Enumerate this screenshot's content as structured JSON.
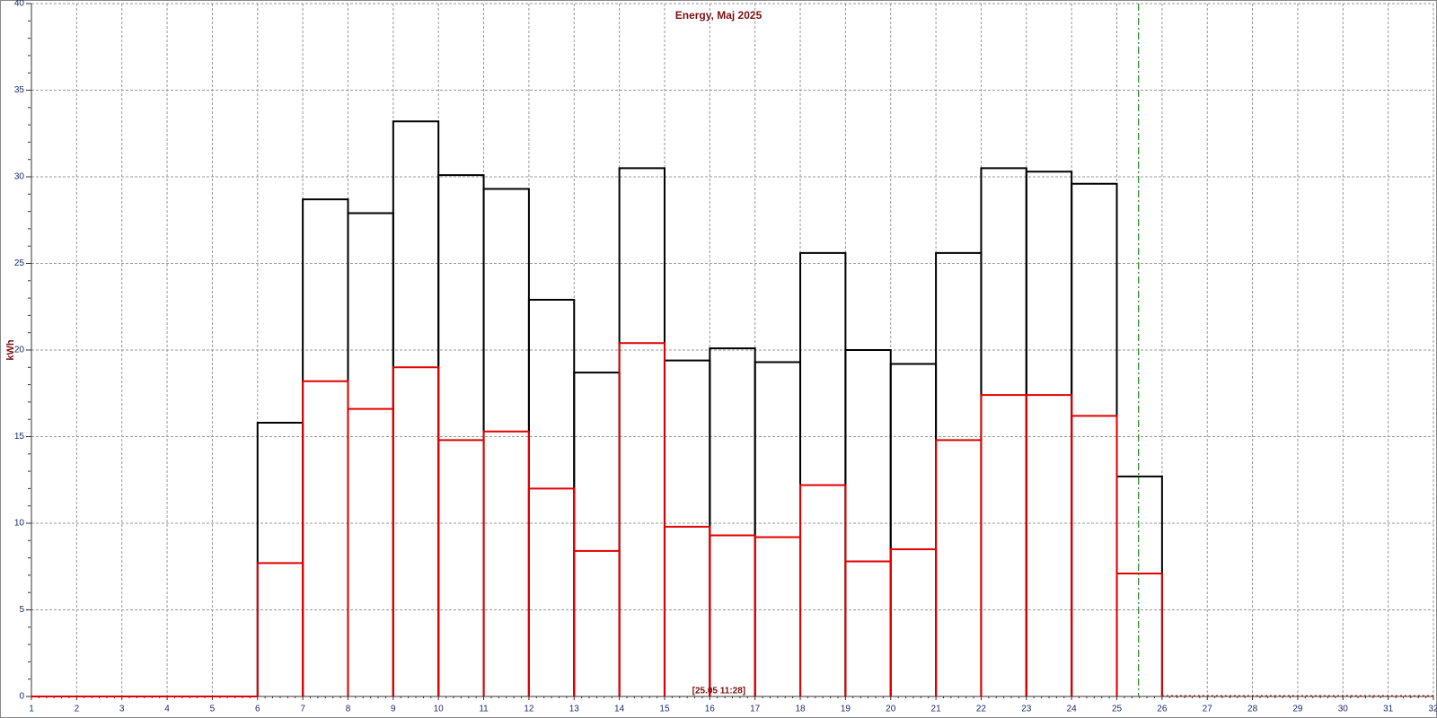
{
  "chart_data": {
    "type": "step-bar",
    "title": "Energy, Maj 2025",
    "y_label": "kWh",
    "x": [
      1,
      2,
      3,
      4,
      5,
      6,
      7,
      8,
      9,
      10,
      11,
      12,
      13,
      14,
      15,
      16,
      17,
      18,
      19,
      20,
      21,
      22,
      23,
      24,
      25,
      26,
      27,
      28,
      29,
      30,
      31
    ],
    "series": [
      {
        "color": "#000000",
        "values": [
          0,
          0,
          0,
          0,
          0,
          15.8,
          28.7,
          27.9,
          33.2,
          30.1,
          29.3,
          22.9,
          18.7,
          30.5,
          19.4,
          20.1,
          19.3,
          25.6,
          20.0,
          19.2,
          25.6,
          30.5,
          30.3,
          29.6,
          12.7,
          null,
          null,
          null,
          null,
          null,
          null
        ]
      },
      {
        "color": "#e00000",
        "values": [
          0,
          0,
          0,
          0,
          0,
          7.7,
          18.2,
          16.6,
          19.0,
          14.8,
          15.3,
          12.0,
          8.4,
          20.4,
          9.8,
          9.3,
          9.2,
          12.2,
          7.8,
          8.5,
          14.8,
          17.4,
          17.4,
          16.2,
          7.1,
          null,
          null,
          null,
          null,
          null,
          null
        ]
      }
    ],
    "xlim": [
      1,
      32
    ],
    "xticks": [
      1,
      2,
      3,
      4,
      5,
      6,
      7,
      8,
      9,
      10,
      11,
      12,
      13,
      14,
      15,
      16,
      17,
      18,
      19,
      20,
      21,
      22,
      23,
      24,
      25,
      26,
      27,
      28,
      29,
      30,
      31,
      32
    ],
    "ylim": [
      0,
      40
    ],
    "yticks": [
      0,
      5,
      10,
      15,
      20,
      25,
      30,
      35,
      40
    ],
    "grid": true,
    "marker": {
      "x": 25.48,
      "color": "#2e8b2e",
      "label": "[25.05 11:28]"
    }
  }
}
